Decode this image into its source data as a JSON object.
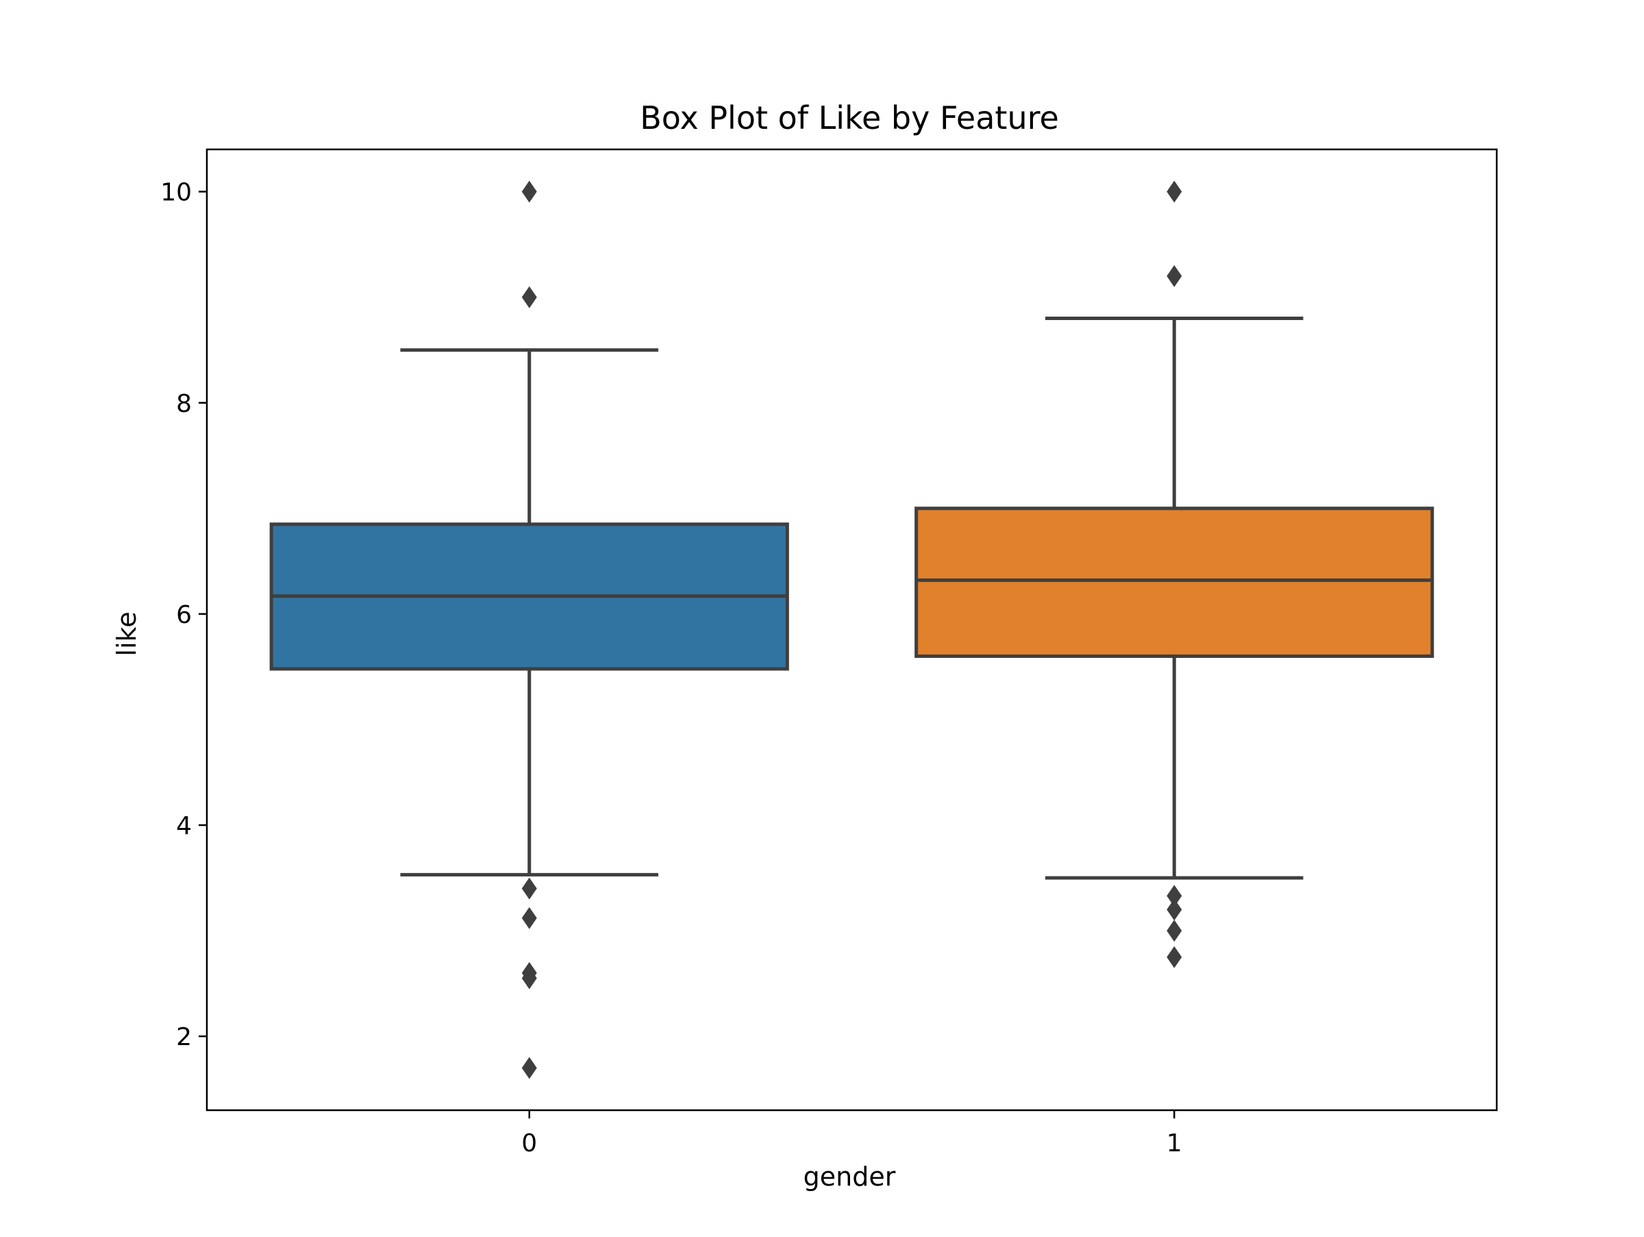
{
  "chart_data": {
    "type": "box",
    "title": "Box Plot of Like by Feature",
    "xlabel": "gender",
    "ylabel": "like",
    "categories": [
      "0",
      "1"
    ],
    "ylim": [
      1.3,
      10.4
    ],
    "yticks": [
      2,
      4,
      6,
      8,
      10
    ],
    "yticklabels": [
      "2",
      "4",
      "6",
      "8",
      "10"
    ],
    "grid": false,
    "boxes": [
      {
        "category": "0",
        "q1": 5.48,
        "median": 6.17,
        "q3": 6.85,
        "whisker_low": 3.53,
        "whisker_high": 8.5,
        "outliers": [
          10.0,
          9.0,
          3.4,
          3.12,
          2.6,
          2.55,
          1.7
        ],
        "color": "#3274a1"
      },
      {
        "category": "1",
        "q1": 5.6,
        "median": 6.32,
        "q3": 7.0,
        "whisker_low": 3.5,
        "whisker_high": 8.8,
        "outliers": [
          10.0,
          9.2,
          3.33,
          3.2,
          3.0,
          2.75
        ],
        "color": "#e1812c"
      }
    ],
    "edge_color": "#3f3f3f"
  }
}
